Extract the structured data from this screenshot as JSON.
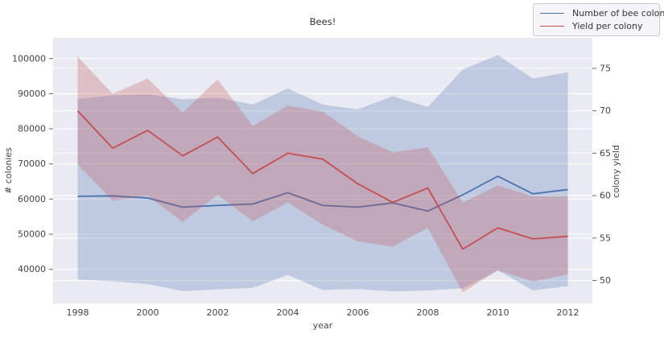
{
  "figure": {
    "legend": {
      "items": [
        {
          "label": "Number of bee colonies",
          "color": "#4c72b0"
        },
        {
          "label": "Yield per colony",
          "color": "#c44e52"
        }
      ]
    }
  },
  "chart_data": {
    "type": "line",
    "title": "Bees!",
    "xlabel": "year",
    "ylabel_left": "# colonies",
    "ylabel_right": "colony yield",
    "grid": true,
    "legend_position": "upper right, outside axes",
    "x": [
      1998,
      1999,
      2000,
      2001,
      2002,
      2003,
      2004,
      2005,
      2006,
      2007,
      2008,
      2009,
      2010,
      2011,
      2012
    ],
    "x_ticks": [
      1998,
      2000,
      2002,
      2004,
      2006,
      2008,
      2010,
      2012
    ],
    "y_ticks_left": [
      40000,
      50000,
      60000,
      70000,
      80000,
      90000,
      100000
    ],
    "y_ticks_right": [
      50,
      55,
      60,
      65,
      70,
      75
    ],
    "xlim": [
      1997.3,
      2012.7
    ],
    "ylim_left": [
      30300,
      105900
    ],
    "ylim_right": [
      47.3,
      78.6
    ],
    "series": [
      {
        "name": "Number of bee colonies",
        "axis": "left",
        "color": "#4c72b0",
        "values": [
          60800,
          60900,
          60300,
          57700,
          58200,
          58600,
          61800,
          58200,
          57700,
          58900,
          56600,
          61200,
          66500,
          61500,
          62700
        ],
        "band_high": [
          88500,
          89500,
          89800,
          88400,
          88900,
          86900,
          91500,
          86900,
          85500,
          89300,
          86200,
          96900,
          101000,
          94300,
          96100
        ],
        "band_low": [
          37100,
          36600,
          35800,
          33800,
          34300,
          34700,
          38400,
          34100,
          34400,
          33700,
          34000,
          34600,
          39700,
          34000,
          35200
        ]
      },
      {
        "name": "Yield per colony",
        "axis": "right",
        "color": "#c44e52",
        "values": [
          70.0,
          65.6,
          67.7,
          64.7,
          66.9,
          62.6,
          65.0,
          64.3,
          61.4,
          59.2,
          60.9,
          53.7,
          56.2,
          54.9,
          55.2
        ],
        "band_high": [
          76.4,
          72.0,
          73.8,
          69.8,
          73.7,
          68.2,
          70.6,
          69.9,
          67.0,
          65.1,
          65.7,
          59.2,
          61.2,
          59.9,
          59.9
        ],
        "band_low": [
          63.7,
          59.4,
          60.0,
          56.9,
          60.1,
          57.0,
          59.2,
          56.6,
          54.6,
          54.0,
          56.2,
          48.6,
          51.2,
          49.9,
          50.7
        ]
      }
    ],
    "styles": {
      "plot_bg": "#eaeaf2",
      "grid_color": "#ffffff",
      "band_alpha": 0.27,
      "tick_text_color": "#444444",
      "title_color": "#333333"
    }
  }
}
